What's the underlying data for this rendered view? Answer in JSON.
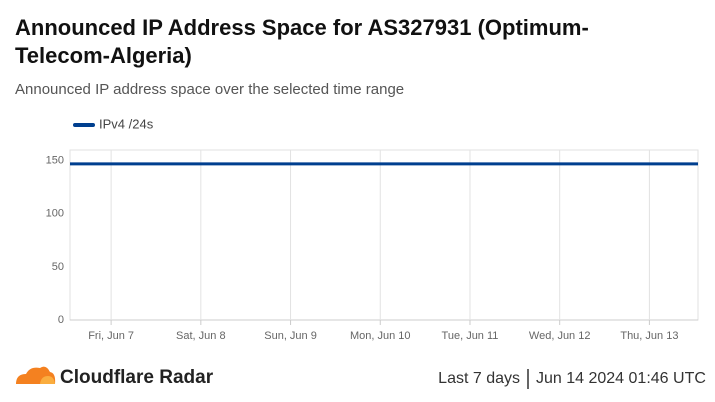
{
  "chart_data": {
    "type": "line",
    "title": "Announced IP Address Space for AS327931 (Optimum-Telecom-Algeria)",
    "subtitle": "Announced IP address space over the selected time range",
    "x": [
      "2024-06-06T13:00",
      "2024-06-07T00:00",
      "2024-06-08T00:00",
      "2024-06-09T00:00",
      "2024-06-10T00:00",
      "2024-06-11T00:00",
      "2024-06-12T00:00",
      "2024-06-13T00:00",
      "2024-06-13T13:00"
    ],
    "series": [
      {
        "name": "IPv4 /24s",
        "color": "#003f8f",
        "values": [
          147,
          147,
          147,
          147,
          147,
          147,
          147,
          147,
          147
        ]
      }
    ],
    "xlim": [
      "2024-06-06T13:00",
      "2024-06-13T13:00"
    ],
    "xticks": [
      {
        "value": "2024-06-07T00:00",
        "label": "Fri, Jun 7"
      },
      {
        "value": "2024-06-08T00:00",
        "label": "Sat, Jun 8"
      },
      {
        "value": "2024-06-09T00:00",
        "label": "Sun, Jun 9"
      },
      {
        "value": "2024-06-10T00:00",
        "label": "Mon, Jun 10"
      },
      {
        "value": "2024-06-11T00:00",
        "label": "Tue, Jun 11"
      },
      {
        "value": "2024-06-12T00:00",
        "label": "Wed, Jun 12"
      },
      {
        "value": "2024-06-13T00:00",
        "label": "Thu, Jun 13"
      }
    ],
    "ylim": [
      0,
      160
    ],
    "yticks": [
      0,
      50,
      100,
      150
    ],
    "grid": true,
    "legend": "top-left",
    "footer": {
      "brand": "Cloudflare Radar",
      "range": "Last 7 days",
      "timestamp": "Jun 14 2024 01:46 UTC"
    }
  }
}
